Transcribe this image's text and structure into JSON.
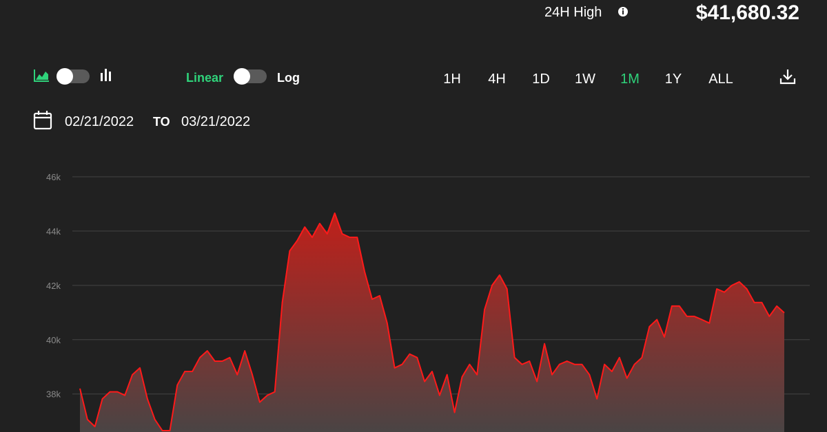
{
  "header": {
    "stat_label": "24H High",
    "stat_value": "$41,680.32"
  },
  "controls": {
    "scale_options": [
      "Linear",
      "Log"
    ],
    "ranges": [
      "1H",
      "4H",
      "1D",
      "1W",
      "1M",
      "1Y",
      "ALL"
    ],
    "date_from": "02/21/2022",
    "date_separator": "TO",
    "date_to": "03/21/2022"
  },
  "chart_data": {
    "type": "area",
    "color": "#ff1a1a",
    "grid": true,
    "ylim": [
      36600,
      46430
    ],
    "yticks": [
      {
        "value": 38000,
        "label": "38k"
      },
      {
        "value": 40000,
        "label": "40k"
      },
      {
        "value": 42000,
        "label": "42k"
      },
      {
        "value": 44000,
        "label": "44k"
      },
      {
        "value": 46000,
        "label": "46k"
      }
    ],
    "values": [
      38200,
      37060,
      36800,
      37820,
      38080,
      38080,
      37950,
      38710,
      38960,
      37820,
      37060,
      36650,
      36650,
      38330,
      38830,
      38830,
      39340,
      39590,
      39210,
      39210,
      39340,
      38710,
      39590,
      38710,
      37700,
      37950,
      38080,
      41370,
      43270,
      43650,
      44150,
      43770,
      44280,
      43900,
      44660,
      43900,
      43770,
      43770,
      42500,
      41490,
      41620,
      40610,
      38960,
      39090,
      39470,
      39340,
      38460,
      38830,
      37950,
      38710,
      37320,
      38630,
      39090,
      38710,
      41110,
      42000,
      42380,
      41870,
      39340,
      39090,
      39210,
      38460,
      39850,
      38710,
      39090,
      39210,
      39090,
      39090,
      38710,
      37820,
      39090,
      38830,
      39340,
      38580,
      39090,
      39340,
      40480,
      40740,
      40100,
      41240,
      41240,
      40860,
      40860,
      40740,
      40610,
      41870,
      41750,
      42000,
      42130,
      41870,
      41370,
      41370,
      40860,
      41240,
      40990
    ]
  }
}
